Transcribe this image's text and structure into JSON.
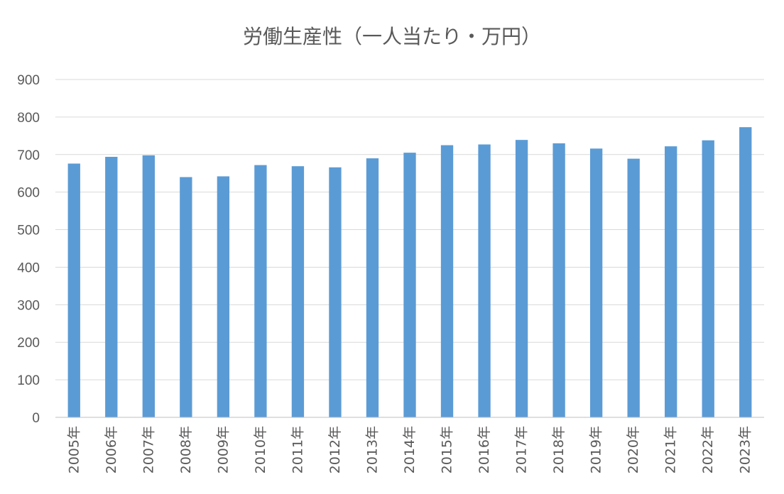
{
  "chart_data": {
    "type": "bar",
    "title": "労働生産性（一人当たり・万円）",
    "xlabel": "",
    "ylabel": "",
    "categories": [
      "2005年",
      "2006年",
      "2007年",
      "2008年",
      "2009年",
      "2010年",
      "2011年",
      "2012年",
      "2013年",
      "2014年",
      "2015年",
      "2016年",
      "2017年",
      "2018年",
      "2019年",
      "2020年",
      "2021年",
      "2022年",
      "2023年"
    ],
    "values": [
      676,
      694,
      698,
      640,
      642,
      672,
      669,
      666,
      690,
      705,
      725,
      727,
      739,
      730,
      716,
      689,
      722,
      738,
      773
    ],
    "ylim": [
      0,
      900
    ],
    "yticks": [
      0,
      100,
      200,
      300,
      400,
      500,
      600,
      700,
      800,
      900
    ],
    "grid": true,
    "legend": "none",
    "bar_color": "#5b9bd5"
  }
}
